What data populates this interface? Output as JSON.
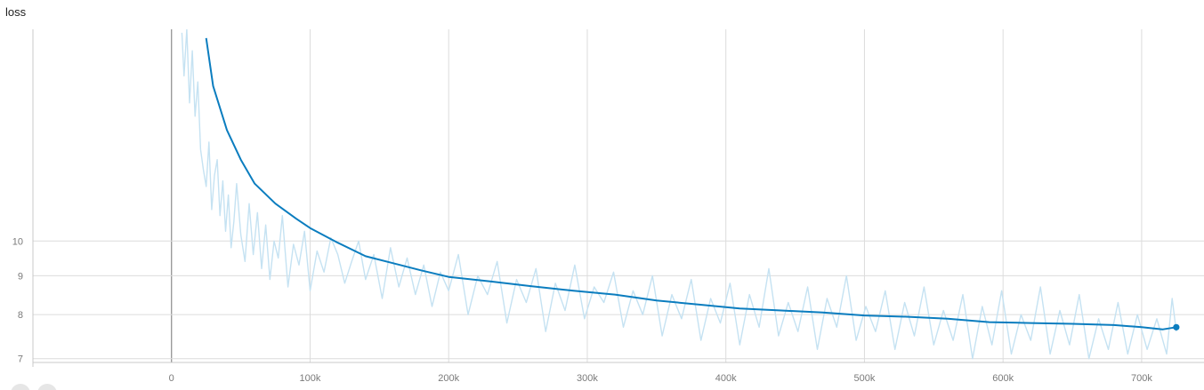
{
  "chart_data": {
    "type": "line",
    "title": "loss",
    "xlabel": "",
    "ylabel": "",
    "xlim": [
      -100000,
      745000
    ],
    "ylim": [
      6.92,
      19.0
    ],
    "y_scale": "log",
    "grid": true,
    "x_ticks": [
      0,
      100000,
      200000,
      300000,
      400000,
      500000,
      600000,
      700000
    ],
    "x_tick_labels": [
      "0",
      "100k",
      "200k",
      "300k",
      "400k",
      "500k",
      "600k",
      "700k"
    ],
    "y_ticks": [
      7,
      8,
      9,
      10
    ],
    "y_tick_labels": [
      "7",
      "8",
      "9",
      "10"
    ],
    "colors": {
      "smoothed": "#0b7dbf",
      "raw": "#c5e2f2",
      "grid": "#dcdcdc",
      "zero_line": "#8a8a8a"
    },
    "series": [
      {
        "role": "smoothed",
        "x": [
          25000,
          30000,
          40000,
          50000,
          60000,
          75000,
          90000,
          100000,
          120000,
          140000,
          160000,
          180000,
          200000,
          230000,
          260000,
          290000,
          320000,
          350000,
          380000,
          410000,
          440000,
          470000,
          500000,
          530000,
          560000,
          590000,
          620000,
          650000,
          680000,
          700000,
          715000,
          725000
        ],
        "y": [
          18.5,
          16.0,
          14.0,
          12.8,
          11.9,
          11.2,
          10.7,
          10.4,
          9.95,
          9.55,
          9.35,
          9.15,
          8.97,
          8.85,
          8.72,
          8.6,
          8.5,
          8.35,
          8.25,
          8.15,
          8.1,
          8.05,
          7.98,
          7.95,
          7.9,
          7.82,
          7.8,
          7.78,
          7.75,
          7.7,
          7.65,
          7.7
        ]
      },
      {
        "role": "raw",
        "x": [
          7500,
          9000,
          11000,
          13000,
          15000,
          17000,
          19000,
          21000,
          23000,
          25000,
          27000,
          29000,
          31000,
          33000,
          35000,
          37000,
          39000,
          41000,
          43000,
          45000,
          47000,
          50000,
          53000,
          56000,
          59000,
          62000,
          65000,
          68000,
          71000,
          74000,
          77000,
          80000,
          84000,
          88000,
          92000,
          96000,
          100000,
          105000,
          110000,
          115000,
          120000,
          125000,
          130000,
          135000,
          140000,
          146000,
          152000,
          158000,
          164000,
          170000,
          176000,
          182000,
          188000,
          194000,
          200000,
          207000,
          214000,
          221000,
          228000,
          235000,
          242000,
          249000,
          256000,
          263000,
          270000,
          277000,
          284000,
          291000,
          298000,
          305000,
          312000,
          319000,
          326000,
          333000,
          340000,
          347000,
          354000,
          361000,
          368000,
          375000,
          382000,
          389000,
          396000,
          403000,
          410000,
          417000,
          424000,
          431000,
          438000,
          445000,
          452000,
          459000,
          466000,
          473000,
          480000,
          487000,
          494000,
          501000,
          508000,
          515000,
          522000,
          529000,
          536000,
          543000,
          550000,
          557000,
          564000,
          571000,
          578000,
          585000,
          592000,
          599000,
          606000,
          613000,
          620000,
          627000,
          634000,
          641000,
          648000,
          655000,
          662000,
          669000,
          676000,
          683000,
          690000,
          697000,
          704000,
          711000,
          718000,
          722000,
          725000
        ],
        "y": [
          18.8,
          16.5,
          19.0,
          15.2,
          17.8,
          14.6,
          16.2,
          13.2,
          12.4,
          11.8,
          13.5,
          11.0,
          12.2,
          12.8,
          10.8,
          12.0,
          10.3,
          11.5,
          9.8,
          10.6,
          11.9,
          10.2,
          9.4,
          11.2,
          9.6,
          10.9,
          9.2,
          10.5,
          8.9,
          10.0,
          9.5,
          10.8,
          8.7,
          9.9,
          9.3,
          10.3,
          8.6,
          9.7,
          9.1,
          10.1,
          9.6,
          8.8,
          9.4,
          10.0,
          8.9,
          9.6,
          8.4,
          9.8,
          8.7,
          9.5,
          8.5,
          9.3,
          8.2,
          9.1,
          8.6,
          9.6,
          8.0,
          9.0,
          8.5,
          9.4,
          7.8,
          8.9,
          8.3,
          9.2,
          7.6,
          8.8,
          8.1,
          9.3,
          7.9,
          8.7,
          8.3,
          9.1,
          7.7,
          8.6,
          8.0,
          9.0,
          7.5,
          8.5,
          7.9,
          8.9,
          7.4,
          8.4,
          7.8,
          8.8,
          7.3,
          8.5,
          7.7,
          9.2,
          7.5,
          8.3,
          7.6,
          8.7,
          7.2,
          8.4,
          7.7,
          9.0,
          7.4,
          8.2,
          7.6,
          8.6,
          7.2,
          8.3,
          7.5,
          8.7,
          7.3,
          8.1,
          7.4,
          8.5,
          7.0,
          8.2,
          7.3,
          8.6,
          7.1,
          8.0,
          7.4,
          8.7,
          7.1,
          8.1,
          7.3,
          8.5,
          7.0,
          7.9,
          7.2,
          8.3,
          7.1,
          8.0,
          7.2,
          7.9,
          7.1,
          8.4,
          7.6
        ]
      }
    ]
  }
}
